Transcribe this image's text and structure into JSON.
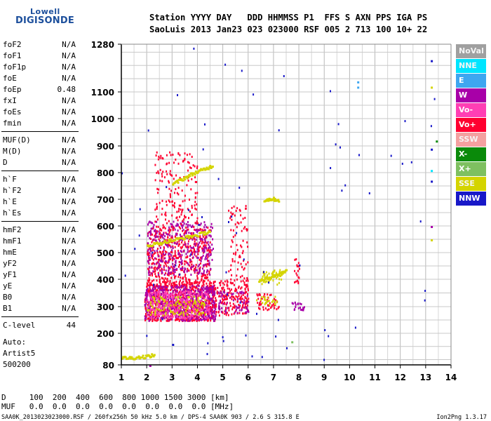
{
  "logo": {
    "top": "Lowell",
    "bottom": "DIGISONDE"
  },
  "header": {
    "line1": "Station YYYY DAY   DDD HHMMSS P1  FFS S AXN PPS IGA PS",
    "line2": "SaoLuis 2013 Jan23 023 023000 RSF 005 2 713 100 10+ 22"
  },
  "params_groups": [
    [
      {
        "name": "foF2",
        "value": "N/A"
      },
      {
        "name": "foF1",
        "value": "N/A"
      },
      {
        "name": "foF1p",
        "value": "N/A"
      },
      {
        "name": "foE",
        "value": "N/A"
      },
      {
        "name": "foEp",
        "value": "0.48"
      },
      {
        "name": "fxI",
        "value": "N/A"
      },
      {
        "name": "foEs",
        "value": "N/A"
      },
      {
        "name": "fmin",
        "value": "N/A"
      }
    ],
    [
      {
        "name": "MUF(D)",
        "value": "N/A"
      },
      {
        "name": "M(D)",
        "value": "N/A"
      },
      {
        "name": "D",
        "value": "N/A"
      }
    ],
    [
      {
        "name": "h`F",
        "value": "N/A"
      },
      {
        "name": "h`F2",
        "value": "N/A"
      },
      {
        "name": "h`E",
        "value": "N/A"
      },
      {
        "name": "h`Es",
        "value": "N/A"
      }
    ],
    [
      {
        "name": "hmF2",
        "value": "N/A"
      },
      {
        "name": "hmF1",
        "value": "N/A"
      },
      {
        "name": "hmE",
        "value": "N/A"
      },
      {
        "name": "yF2",
        "value": "N/A"
      },
      {
        "name": "yF1",
        "value": "N/A"
      },
      {
        "name": "yE",
        "value": "N/A"
      },
      {
        "name": "B0",
        "value": "N/A"
      },
      {
        "name": "B1",
        "value": "N/A"
      }
    ],
    [
      {
        "name": "C-level",
        "value": "44"
      }
    ]
  ],
  "auto": {
    "line1": "Auto:",
    "line2": "Artist5",
    "line3": "500200"
  },
  "distance_table": {
    "row1": "D     100  200  400  600  800 1000 1500 3000 [km]",
    "row2": "MUF   0.0  0.0  0.0  0.0  0.0  0.0  0.0  0.0 [MHz]"
  },
  "footer": {
    "left": "SAA0K_2013023023000.RSF / 260fx256h 50 kHz 5.0 km / DPS-4 SAA0K 903 / 2.6 S 315.8 E",
    "right": "Ion2Png 1.3.17"
  },
  "legend": [
    {
      "label": "NoVal",
      "color": "#a0a0a0"
    },
    {
      "label": "NNE",
      "color": "#00e5ff"
    },
    {
      "label": "E",
      "color": "#3ea6f0"
    },
    {
      "label": "W",
      "color": "#a800a8"
    },
    {
      "label": "Vo-",
      "color": "#ff3fb4"
    },
    {
      "label": "Vo+",
      "color": "#ff0030"
    },
    {
      "label": "SSW",
      "color": "#f4a0a0"
    },
    {
      "label": "X-",
      "color": "#0a8a0a"
    },
    {
      "label": "X+",
      "color": "#7ec060"
    },
    {
      "label": "SSE",
      "color": "#d4d400"
    },
    {
      "label": "NNW",
      "color": "#1818c8"
    }
  ],
  "chart_data": {
    "type": "scatter",
    "xlim": [
      1,
      14
    ],
    "ylim": [
      80,
      1280
    ],
    "x_ticks": [
      "1",
      "2",
      "3",
      "4",
      "5",
      "6",
      "7",
      "8",
      "9",
      "10",
      "11",
      "12",
      "13",
      "14"
    ],
    "y_ticks": [
      "80",
      "200",
      "300",
      "400",
      "500",
      "600",
      "700",
      "800",
      "900",
      "1000",
      "1100",
      "1280"
    ],
    "y_tick_values": [
      80,
      200,
      300,
      400,
      500,
      600,
      700,
      800,
      900,
      1000,
      1100,
      1280
    ],
    "grid": true,
    "regions": [
      {
        "series": "Vo+",
        "x": [
          1.9,
          4.7
        ],
        "y": [
          250,
          400
        ],
        "density": 0.9
      },
      {
        "series": "W",
        "x": [
          1.9,
          4.7
        ],
        "y": [
          250,
          380
        ],
        "density": 0.6
      },
      {
        "series": "Vo-",
        "x": [
          2.0,
          4.5
        ],
        "y": [
          260,
          360
        ],
        "density": 0.5
      },
      {
        "series": "SSE",
        "x": [
          2.0,
          4.3
        ],
        "y": [
          270,
          340
        ],
        "density": 0.3
      },
      {
        "series": "Vo+",
        "x": [
          2.0,
          4.5
        ],
        "y": [
          400,
          600
        ],
        "density": 0.4
      },
      {
        "series": "W",
        "x": [
          2.0,
          4.6
        ],
        "y": [
          420,
          620
        ],
        "density": 0.3
      },
      {
        "series": "Vo+",
        "x": [
          2.3,
          4.0
        ],
        "y": [
          600,
          880
        ],
        "density": 0.15
      },
      {
        "series": "Vo+",
        "x": [
          4.7,
          6.0
        ],
        "y": [
          270,
          400
        ],
        "density": 0.45
      },
      {
        "series": "W",
        "x": [
          4.8,
          6.0
        ],
        "y": [
          280,
          360
        ],
        "density": 0.3
      },
      {
        "series": "Vo+",
        "x": [
          5.2,
          6.0
        ],
        "y": [
          400,
          680
        ],
        "density": 0.15
      },
      {
        "series": "Vo+",
        "x": [
          6.3,
          7.2
        ],
        "y": [
          290,
          350
        ],
        "density": 0.4
      },
      {
        "series": "SSE",
        "x": [
          6.3,
          7.2
        ],
        "y": [
          310,
          340
        ],
        "density": 0.4
      },
      {
        "series": "W",
        "x": [
          7.7,
          8.2
        ],
        "y": [
          290,
          320
        ],
        "density": 0.6
      },
      {
        "series": "SSE",
        "x": [
          6.5,
          7.3
        ],
        "y": [
          380,
          440
        ],
        "density": 0.4
      },
      {
        "series": "Vo+",
        "x": [
          7.8,
          8.0
        ],
        "y": [
          380,
          480
        ],
        "density": 0.4
      },
      {
        "series": "NNW",
        "x": [
          1.0,
          14.0
        ],
        "y": [
          80,
          1280
        ],
        "density": 0.002
      }
    ],
    "traces": [
      {
        "series": "SSE",
        "points": [
          [
            2.0,
            530
          ],
          [
            2.5,
            540
          ],
          [
            3.0,
            550
          ],
          [
            3.5,
            560
          ],
          [
            4.0,
            570
          ],
          [
            4.5,
            585
          ]
        ]
      },
      {
        "series": "SSE",
        "points": [
          [
            3.0,
            760
          ],
          [
            3.4,
            780
          ],
          [
            3.8,
            800
          ],
          [
            4.2,
            815
          ],
          [
            4.6,
            830
          ]
        ]
      },
      {
        "series": "SSE",
        "points": [
          [
            6.4,
            400
          ],
          [
            6.8,
            410
          ],
          [
            7.2,
            420
          ],
          [
            7.5,
            440
          ]
        ]
      },
      {
        "series": "SSE",
        "points": [
          [
            6.6,
            700
          ],
          [
            6.9,
            705
          ],
          [
            7.2,
            700
          ]
        ]
      },
      {
        "series": "SSE",
        "points": [
          [
            1.0,
            110
          ],
          [
            1.4,
            110
          ],
          [
            1.9,
            115
          ],
          [
            2.3,
            120
          ]
        ]
      }
    ],
    "points": [
      {
        "series": "E",
        "x": 10.3,
        "y": 1140
      },
      {
        "series": "E",
        "x": 10.3,
        "y": 1120
      },
      {
        "series": "NNW",
        "x": 13.2,
        "y": 1220
      },
      {
        "series": "SSE",
        "x": 13.2,
        "y": 1120
      },
      {
        "series": "NNW",
        "x": 13.2,
        "y": 890
      },
      {
        "series": "X-",
        "x": 13.4,
        "y": 920
      },
      {
        "series": "NNE",
        "x": 13.2,
        "y": 810
      },
      {
        "series": "NNW",
        "x": 13.2,
        "y": 770
      },
      {
        "series": "W",
        "x": 13.2,
        "y": 600
      },
      {
        "series": "SSE",
        "x": 13.2,
        "y": 550
      },
      {
        "series": "W",
        "x": 2.1,
        "y": 80
      },
      {
        "series": "NNW",
        "x": 3.0,
        "y": 160
      },
      {
        "series": "X+",
        "x": 7.7,
        "y": 170
      }
    ]
  }
}
